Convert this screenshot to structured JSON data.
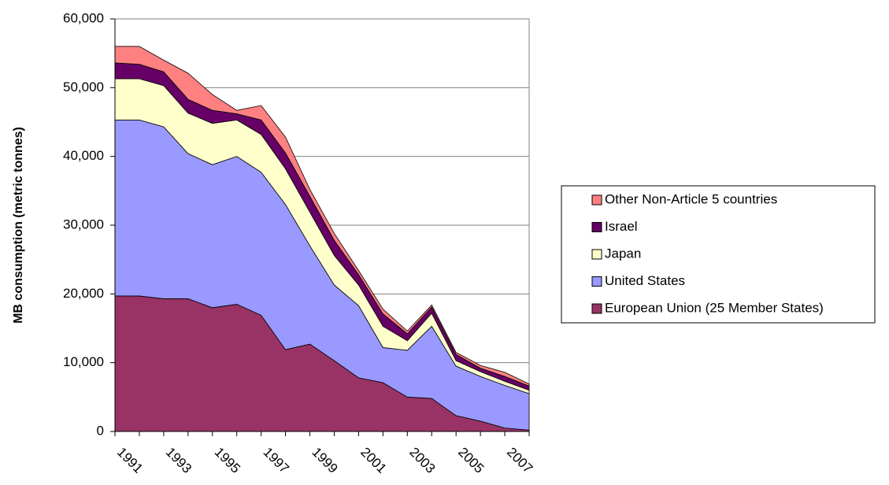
{
  "chart_data": {
    "type": "stacked-area",
    "y_label": "MB consumption (metric tonnes)",
    "categories": [
      null,
      "1991",
      null,
      "1993",
      null,
      "1995",
      null,
      "1997",
      null,
      "1999",
      null,
      "2001",
      null,
      "2003",
      null,
      "2005",
      null,
      "2007"
    ],
    "ylim": [
      0,
      60000
    ],
    "yticks": [
      0,
      {
        "value": 10000,
        "label": "10,000"
      },
      {
        "value": 20000,
        "label": "20,000"
      },
      {
        "value": 30000,
        "label": "30,000"
      },
      {
        "value": 40000,
        "label": "40,000"
      },
      {
        "value": 50000,
        "label": "50,000"
      },
      {
        "value": 60000,
        "label": "60,000"
      }
    ],
    "grid": true,
    "legend": "right",
    "series": [
      {
        "name": "European Union (25 Member States)",
        "color": "#993366",
        "values": [
          19700,
          19700,
          19300,
          19300,
          18000,
          18500,
          16900,
          11900,
          12700,
          10300,
          7800,
          7100,
          5000,
          4800,
          2300,
          1500,
          500,
          200
        ]
      },
      {
        "name": "United States",
        "color": "#9999ff",
        "values": [
          25600,
          25600,
          25000,
          21100,
          20800,
          21500,
          20800,
          21100,
          14300,
          11000,
          10500,
          5100,
          6800,
          10500,
          7200,
          6500,
          6200,
          5300
        ]
      },
      {
        "name": "Japan",
        "color": "#ffffcc",
        "values": [
          6000,
          6000,
          6000,
          5900,
          6000,
          5300,
          5500,
          5200,
          4900,
          4300,
          3000,
          3100,
          1400,
          1900,
          800,
          700,
          600,
          500
        ]
      },
      {
        "name": "Israel",
        "color": "#660066",
        "values": [
          2300,
          2100,
          2000,
          2000,
          1900,
          900,
          2100,
          2300,
          2300,
          2200,
          1500,
          1800,
          1000,
          900,
          900,
          500,
          700,
          600
        ]
      },
      {
        "name": "Other Non-Article 5 countries",
        "color": "#ff8080",
        "values": [
          2400,
          2600,
          1700,
          3800,
          2300,
          500,
          2100,
          2300,
          1000,
          1000,
          600,
          700,
          400,
          300,
          300,
          400,
          600,
          300
        ]
      }
    ]
  }
}
